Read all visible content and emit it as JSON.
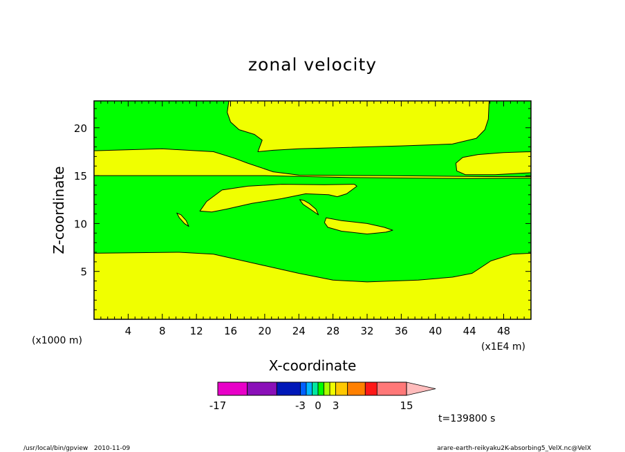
{
  "chart_data": {
    "type": "heatmap",
    "title": "zonal velocity",
    "xlabel": "X-coordinate",
    "ylabel": "Z-coordinate",
    "x_unit_left": "(x1000 m)",
    "x_unit_right": "(x1E4 m)",
    "xlim": [
      0,
      51.2
    ],
    "ylim": [
      0,
      22.8
    ],
    "x_ticks": [
      4,
      8,
      12,
      16,
      20,
      24,
      28,
      32,
      36,
      40,
      44,
      48
    ],
    "y_ticks": [
      5,
      10,
      15,
      20
    ],
    "colors": {
      "negative_small": "#00ff00",
      "positive_small": "#f0ff00"
    },
    "colorbar": {
      "levels": [
        -17,
        -12,
        -7,
        -3,
        -2,
        -1,
        0,
        1,
        2,
        3,
        5,
        8,
        10,
        15
      ],
      "colors": [
        "#e800c8",
        "#8a10b8",
        "#0018b8",
        "#0060ff",
        "#00b8ff",
        "#00e8a0",
        "#00ff00",
        "#a8ff00",
        "#f0ff00",
        "#ffc800",
        "#ff8000",
        "#ff1818",
        "#ff7878",
        "#ffbcbc"
      ],
      "tick_labels": [
        {
          "value": -17,
          "label": "-17"
        },
        {
          "value": -3,
          "label": "-3"
        },
        {
          "value": 0,
          "label": "0"
        },
        {
          "value": 3,
          "label": "3"
        },
        {
          "value": 15,
          "label": "15"
        }
      ]
    },
    "time_label": "t=139800 s",
    "regions": [
      {
        "value": "positive",
        "points": [
          [
            0,
            0
          ],
          [
            51.2,
            0
          ],
          [
            51.2,
            6.9
          ],
          [
            49,
            6.8
          ],
          [
            46.5,
            6.1
          ],
          [
            44.3,
            4.8
          ],
          [
            42,
            4.4
          ],
          [
            38,
            4.1
          ],
          [
            32,
            3.9
          ],
          [
            28,
            4.1
          ],
          [
            24,
            4.8
          ],
          [
            20,
            5.6
          ],
          [
            14,
            6.8
          ],
          [
            10,
            7.0
          ],
          [
            0,
            6.9
          ]
        ]
      },
      {
        "value": "positive",
        "points": [
          [
            0,
            15.0
          ],
          [
            0,
            17.6
          ],
          [
            8,
            17.8
          ],
          [
            14,
            17.5
          ],
          [
            16.5,
            16.8
          ],
          [
            18,
            16.3
          ],
          [
            21,
            15.4
          ],
          [
            24,
            15.05
          ],
          [
            34,
            15.0
          ],
          [
            46,
            14.9
          ],
          [
            51.2,
            14.9
          ],
          [
            51.2,
            14.75
          ],
          [
            44,
            14.7
          ],
          [
            30,
            14.8
          ],
          [
            20,
            15.0
          ],
          [
            13,
            15.0
          ],
          [
            8,
            15.0
          ]
        ]
      },
      {
        "value": "positive",
        "points": [
          [
            15.8,
            22.8
          ],
          [
            46.3,
            22.8
          ],
          [
            46.2,
            20.9
          ],
          [
            45.8,
            19.8
          ],
          [
            44.8,
            18.9
          ],
          [
            42,
            18.3
          ],
          [
            36,
            18.1
          ],
          [
            28,
            17.9
          ],
          [
            24,
            17.8
          ],
          [
            21,
            17.65
          ],
          [
            19.2,
            17.5
          ],
          [
            19.7,
            18.7
          ],
          [
            18.8,
            19.3
          ],
          [
            17,
            19.8
          ],
          [
            16.0,
            20.6
          ],
          [
            15.6,
            21.6
          ]
        ]
      },
      {
        "value": "positive",
        "points": [
          [
            51.2,
            17.5
          ],
          [
            51.2,
            15.3
          ],
          [
            47,
            15.1
          ],
          [
            43.5,
            15.1
          ],
          [
            42.5,
            15.5
          ],
          [
            42.4,
            16.3
          ],
          [
            43.2,
            16.9
          ],
          [
            45,
            17.2
          ],
          [
            48,
            17.4
          ]
        ]
      },
      {
        "value": "positive",
        "points": [
          [
            12.4,
            11.3
          ],
          [
            13.2,
            12.3
          ],
          [
            15,
            13.5
          ],
          [
            18,
            13.9
          ],
          [
            22,
            14.1
          ],
          [
            27,
            14.05
          ],
          [
            30.5,
            14.1
          ],
          [
            30.8,
            13.9
          ],
          [
            29.6,
            13.1
          ],
          [
            28.5,
            12.8
          ],
          [
            27.5,
            13.0
          ],
          [
            24.8,
            13.1
          ],
          [
            22,
            12.6
          ],
          [
            18.5,
            12.1
          ],
          [
            15.5,
            11.5
          ],
          [
            13.8,
            11.2
          ]
        ]
      },
      {
        "value": "positive",
        "points": [
          [
            9.7,
            11.1
          ],
          [
            10.0,
            10.6
          ],
          [
            10.6,
            10.0
          ],
          [
            11.1,
            9.7
          ],
          [
            10.8,
            10.3
          ],
          [
            10.2,
            10.9
          ]
        ]
      },
      {
        "value": "positive",
        "points": [
          [
            24.1,
            12.5
          ],
          [
            24.5,
            12.0
          ],
          [
            25.5,
            11.4
          ],
          [
            26.3,
            10.9
          ],
          [
            26.0,
            11.5
          ],
          [
            25.2,
            12.1
          ],
          [
            24.6,
            12.4
          ]
        ]
      },
      {
        "value": "positive",
        "points": [
          [
            27.2,
            10.6
          ],
          [
            27.8,
            10.5
          ],
          [
            29,
            10.3
          ],
          [
            32,
            10.0
          ],
          [
            34,
            9.6
          ],
          [
            35,
            9.3
          ],
          [
            34.2,
            9.1
          ],
          [
            32,
            8.9
          ],
          [
            29,
            9.2
          ],
          [
            27.4,
            9.6
          ],
          [
            27.0,
            10.1
          ]
        ]
      }
    ]
  },
  "footer": {
    "left": "/usr/local/bin/gpview   2010-11-09",
    "right": "arare-earth-reikyaku2K-absorbing5_VelX.nc@VelX"
  }
}
